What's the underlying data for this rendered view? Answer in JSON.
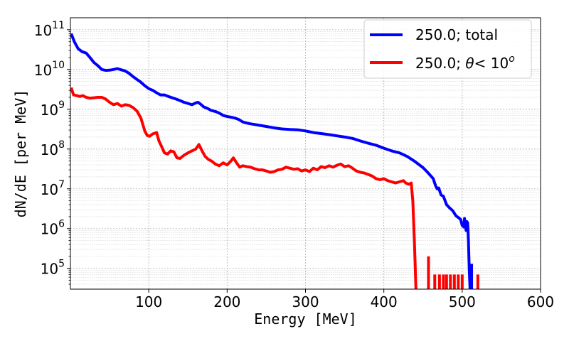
{
  "chart_data": {
    "type": "line",
    "title": "",
    "xlabel": "Energy [MeV]",
    "ylabel": "dN/dE [per MeV]",
    "xlim": [
      0,
      600
    ],
    "ylim": [
      30000,
      200000000000
    ],
    "yscale": "log",
    "grid": true,
    "legend_position": "top-right",
    "x_ticks": [
      "100",
      "200",
      "300",
      "400",
      "500",
      "600"
    ],
    "x_tick_values": [
      100,
      200,
      300,
      400,
      500,
      600
    ],
    "y_ticks": [
      {
        "base": "10",
        "exp": "5",
        "value": 100000
      },
      {
        "base": "10",
        "exp": "6",
        "value": 1000000
      },
      {
        "base": "10",
        "exp": "7",
        "value": 10000000
      },
      {
        "base": "10",
        "exp": "8",
        "value": 100000000
      },
      {
        "base": "10",
        "exp": "9",
        "value": 1000000000
      },
      {
        "base": "10",
        "exp": "10",
        "value": 10000000000
      },
      {
        "base": "10",
        "exp": "11",
        "value": 100000000000
      }
    ],
    "series": [
      {
        "name": "250.0; total",
        "color": "#0000ff",
        "points": [
          [
            1,
            80000000000.0
          ],
          [
            5,
            50000000000.0
          ],
          [
            10,
            33000000000.0
          ],
          [
            15,
            28000000000.0
          ],
          [
            20,
            26000000000.0
          ],
          [
            25,
            20000000000.0
          ],
          [
            30,
            15000000000.0
          ],
          [
            35,
            12500000000.0
          ],
          [
            40,
            10000000000.0
          ],
          [
            45,
            9500000000.0
          ],
          [
            50,
            9600000000.0
          ],
          [
            55,
            10000000000.0
          ],
          [
            60,
            10500000000.0
          ],
          [
            65,
            9800000000.0
          ],
          [
            70,
            9200000000.0
          ],
          [
            75,
            8000000000.0
          ],
          [
            80,
            6600000000.0
          ],
          [
            85,
            5600000000.0
          ],
          [
            90,
            4800000000.0
          ],
          [
            95,
            3900000000.0
          ],
          [
            100,
            3300000000.0
          ],
          [
            105,
            3000000000.0
          ],
          [
            110,
            2600000000.0
          ],
          [
            115,
            2300000000.0
          ],
          [
            120,
            2300000000.0
          ],
          [
            125,
            2100000000.0
          ],
          [
            130,
            1950000000.0
          ],
          [
            135,
            1800000000.0
          ],
          [
            140,
            1650000000.0
          ],
          [
            145,
            1500000000.0
          ],
          [
            150,
            1400000000.0
          ],
          [
            155,
            1300000000.0
          ],
          [
            160,
            1450000000.0
          ],
          [
            163,
            1500000000.0
          ],
          [
            167,
            1300000000.0
          ],
          [
            170,
            1150000000.0
          ],
          [
            175,
            1050000000.0
          ],
          [
            180,
            930000000.0
          ],
          [
            185,
            880000000.0
          ],
          [
            190,
            800000000.0
          ],
          [
            195,
            700000000.0
          ],
          [
            200,
            660000000.0
          ],
          [
            205,
            630000000.0
          ],
          [
            210,
            600000000.0
          ],
          [
            215,
            550000000.0
          ],
          [
            220,
            480000000.0
          ],
          [
            225,
            450000000.0
          ],
          [
            230,
            430000000.0
          ],
          [
            240,
            400000000.0
          ],
          [
            250,
            370000000.0
          ],
          [
            260,
            340000000.0
          ],
          [
            270,
            320000000.0
          ],
          [
            280,
            310000000.0
          ],
          [
            290,
            305000000.0
          ],
          [
            300,
            285000000.0
          ],
          [
            310,
            260000000.0
          ],
          [
            320,
            245000000.0
          ],
          [
            330,
            230000000.0
          ],
          [
            340,
            215000000.0
          ],
          [
            350,
            200000000.0
          ],
          [
            360,
            185000000.0
          ],
          [
            370,
            160000000.0
          ],
          [
            380,
            140000000.0
          ],
          [
            390,
            125000000.0
          ],
          [
            400,
            105000000.0
          ],
          [
            410,
            90000000.0
          ],
          [
            420,
            80000000.0
          ],
          [
            430,
            65000000.0
          ],
          [
            440,
            48000000.0
          ],
          [
            450,
            34000000.0
          ],
          [
            455,
            27000000.0
          ],
          [
            460,
            21000000.0
          ],
          [
            463,
            18000000.0
          ],
          [
            466,
            12000000.0
          ],
          [
            468,
            10000000.0
          ],
          [
            470,
            10500000.0
          ],
          [
            473,
            7000000.0
          ],
          [
            476,
            6500000.0
          ],
          [
            480,
            4000000.0
          ],
          [
            484,
            3300000.0
          ],
          [
            488,
            2800000.0
          ],
          [
            492,
            2100000.0
          ],
          [
            495,
            1900000.0
          ],
          [
            498,
            1700000.0
          ],
          [
            500,
            1200000.0
          ],
          [
            502,
            1100000.0
          ],
          [
            503,
            1800000.0
          ],
          [
            504,
            1200000.0
          ],
          [
            505,
            900000.0
          ],
          [
            506,
            1500000.0
          ],
          [
            507,
            1400000.0
          ],
          [
            508,
            500000.0
          ],
          [
            509,
            100000.0
          ],
          [
            510,
            30000.0
          ]
        ]
      },
      {
        "name": "250.0; θ< 10",
        "color": "#ff0000",
        "points": [
          [
            1,
            3500000000.0
          ],
          [
            4,
            2300000000.0
          ],
          [
            8,
            2200000000.0
          ],
          [
            12,
            2100000000.0
          ],
          [
            16,
            2200000000.0
          ],
          [
            20,
            2000000000.0
          ],
          [
            25,
            1900000000.0
          ],
          [
            30,
            1950000000.0
          ],
          [
            35,
            2000000000.0
          ],
          [
            40,
            2000000000.0
          ],
          [
            45,
            1800000000.0
          ],
          [
            50,
            1500000000.0
          ],
          [
            55,
            1300000000.0
          ],
          [
            60,
            1400000000.0
          ],
          [
            65,
            1200000000.0
          ],
          [
            70,
            1300000000.0
          ],
          [
            75,
            1250000000.0
          ],
          [
            80,
            1100000000.0
          ],
          [
            85,
            900000000.0
          ],
          [
            90,
            600000000.0
          ],
          [
            95,
            280000000.0
          ],
          [
            98,
            220000000.0
          ],
          [
            101,
            210000000.0
          ],
          [
            105,
            240000000.0
          ],
          [
            110,
            260000000.0
          ],
          [
            113,
            160000000.0
          ],
          [
            116,
            120000000.0
          ],
          [
            120,
            80000000.0
          ],
          [
            124,
            75000000.0
          ],
          [
            128,
            90000000.0
          ],
          [
            132,
            85000000.0
          ],
          [
            136,
            60000000.0
          ],
          [
            140,
            58000000.0
          ],
          [
            145,
            70000000.0
          ],
          [
            150,
            80000000.0
          ],
          [
            155,
            90000000.0
          ],
          [
            160,
            100000000.0
          ],
          [
            164,
            130000000.0
          ],
          [
            168,
            90000000.0
          ],
          [
            172,
            65000000.0
          ],
          [
            176,
            55000000.0
          ],
          [
            180,
            50000000.0
          ],
          [
            185,
            42000000.0
          ],
          [
            190,
            38000000.0
          ],
          [
            195,
            45000000.0
          ],
          [
            200,
            40000000.0
          ],
          [
            205,
            50000000.0
          ],
          [
            208,
            60000000.0
          ],
          [
            212,
            45000000.0
          ],
          [
            216,
            35000000.0
          ],
          [
            220,
            38000000.0
          ],
          [
            225,
            36000000.0
          ],
          [
            230,
            35000000.0
          ],
          [
            235,
            32000000.0
          ],
          [
            240,
            30000000.0
          ],
          [
            245,
            30000000.0
          ],
          [
            250,
            28000000.0
          ],
          [
            255,
            26000000.0
          ],
          [
            260,
            27000000.0
          ],
          [
            265,
            30000000.0
          ],
          [
            270,
            31000000.0
          ],
          [
            275,
            35000000.0
          ],
          [
            280,
            33000000.0
          ],
          [
            285,
            31000000.0
          ],
          [
            290,
            32000000.0
          ],
          [
            295,
            28000000.0
          ],
          [
            300,
            30000000.0
          ],
          [
            305,
            27000000.0
          ],
          [
            310,
            33000000.0
          ],
          [
            315,
            30000000.0
          ],
          [
            320,
            36000000.0
          ],
          [
            325,
            34000000.0
          ],
          [
            330,
            38000000.0
          ],
          [
            335,
            35000000.0
          ],
          [
            340,
            39000000.0
          ],
          [
            345,
            42000000.0
          ],
          [
            350,
            36000000.0
          ],
          [
            355,
            38000000.0
          ],
          [
            360,
            33000000.0
          ],
          [
            365,
            28000000.0
          ],
          [
            370,
            26000000.0
          ],
          [
            375,
            25000000.0
          ],
          [
            380,
            23000000.0
          ],
          [
            385,
            21000000.0
          ],
          [
            390,
            18000000.0
          ],
          [
            395,
            17000000.0
          ],
          [
            400,
            18000000.0
          ],
          [
            405,
            16000000.0
          ],
          [
            410,
            15000000.0
          ],
          [
            415,
            14000000.0
          ],
          [
            420,
            15000000.0
          ],
          [
            425,
            16000000.0
          ],
          [
            428,
            14000000.0
          ],
          [
            432,
            13000000.0
          ],
          [
            435,
            14000000.0
          ],
          [
            437,
            5000000.0
          ],
          [
            439,
            500000.0
          ],
          [
            441,
            30000.0
          ]
        ]
      }
    ],
    "spikes": [
      {
        "color": "#ff0000",
        "x": 457,
        "y": 200000.0
      },
      {
        "color": "#ff0000",
        "x": 465,
        "y": 70000.0
      },
      {
        "color": "#ff0000",
        "x": 471,
        "y": 70000.0
      },
      {
        "color": "#ff0000",
        "x": 476,
        "y": 70000.0
      },
      {
        "color": "#ff0000",
        "x": 480,
        "y": 70000.0
      },
      {
        "color": "#ff0000",
        "x": 485,
        "y": 70000.0
      },
      {
        "color": "#ff0000",
        "x": 490,
        "y": 70000.0
      },
      {
        "color": "#ff0000",
        "x": 495,
        "y": 70000.0
      },
      {
        "color": "#ff0000",
        "x": 500,
        "y": 70000.0
      },
      {
        "color": "#0000ff",
        "x": 512,
        "y": 130000.0
      },
      {
        "color": "#ff0000",
        "x": 520,
        "y": 70000.0
      }
    ],
    "legend": [
      {
        "label": "250.0; total",
        "color": "#0000ff"
      },
      {
        "label_prefix": "250.0; ",
        "label_symbol": "θ",
        "label_mid": "< 10",
        "label_sup": "o",
        "color": "#ff0000"
      }
    ]
  }
}
